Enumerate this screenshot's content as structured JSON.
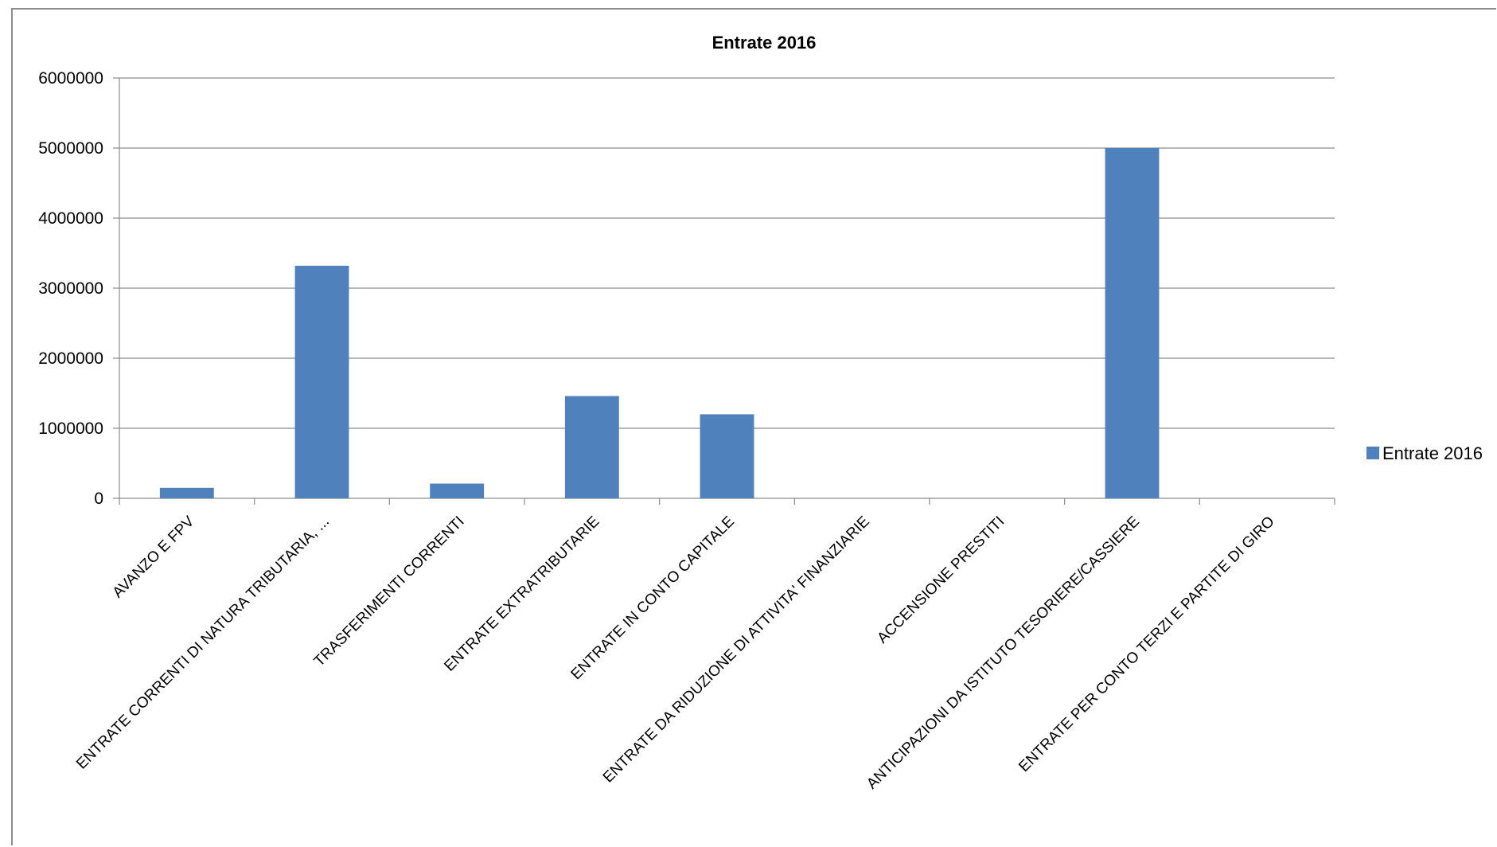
{
  "chart_data": {
    "type": "bar",
    "title": "Entrate 2016",
    "xlabel": "",
    "ylabel": "",
    "ylim": [
      0,
      6000000
    ],
    "yticks": [
      "0",
      "1000000",
      "2000000",
      "3000000",
      "4000000",
      "5000000",
      "6000000"
    ],
    "grid": true,
    "legend_position": "right",
    "categories": [
      "AVANZO E FPV",
      "ENTRATE CORRENTI DI NATURA TRIBUTARIA, ...",
      "TRASFERIMENTI CORRENTI",
      "ENTRATE EXTRATRIBUTARIE",
      "ENTRATE IN CONTO CAPITALE",
      "ENTRATE DA RIDUZIONE DI ATTIVITA' FINANZIARIE",
      "ACCENSIONE PRESTITI",
      "ANTICIPAZIONI DA ISTITUTO TESORIERE/CASSIERE",
      "ENTRATE PER CONTO TERZI E PARTITE DI GIRO"
    ],
    "series": [
      {
        "name": "Entrate 2016",
        "color": "#4f81bd",
        "values": [
          150000,
          3320000,
          210000,
          1460000,
          1200000,
          0,
          0,
          5000000,
          0
        ]
      }
    ]
  }
}
